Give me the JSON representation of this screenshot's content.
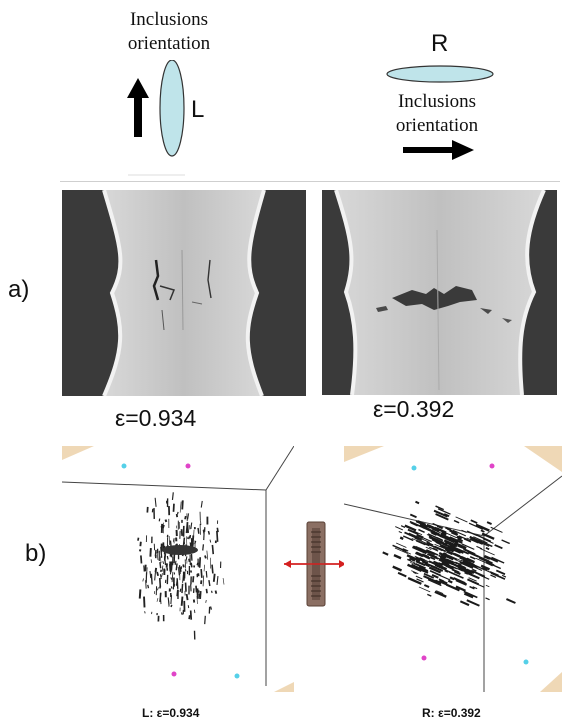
{
  "top": {
    "left": {
      "line1": "Inclusions",
      "line2": "orientation",
      "letter": "L"
    },
    "right": {
      "letter": "R",
      "line1": "Inclusions",
      "line2": "orientation"
    }
  },
  "part_a": {
    "label": "a)",
    "left_strain": "ε=0.934",
    "right_strain": "ε=0.392"
  },
  "part_b": {
    "label": "b)",
    "left_caption": "L: ε=0.934",
    "right_caption": "R: ε=0.392"
  },
  "colors": {
    "ellipse_fill": "#bfe4ea",
    "tomo_dark": "#3a3a3a",
    "tomo_gray": "#c4c4c4",
    "cyan_dot": "#55d0e8",
    "magenta_dot": "#e044c8",
    "arrow_red": "#d42020"
  }
}
